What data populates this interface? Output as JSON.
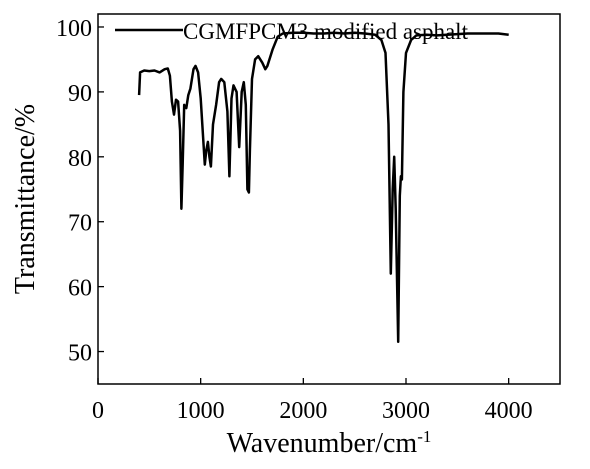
{
  "chart_data": {
    "type": "line",
    "xlabel": "Wavenumber/cm",
    "xlabel_superscript": "-1",
    "ylabel": "Transmittance/%",
    "xlim": [
      0,
      4500
    ],
    "ylim": [
      45,
      102
    ],
    "xticks": [
      0,
      1000,
      2000,
      3000,
      4000
    ],
    "yticks": [
      50,
      60,
      70,
      80,
      90,
      100
    ],
    "legend_position": "top-right",
    "grid": false,
    "series": [
      {
        "name": "CGMFPCM3 modified asphalt",
        "color": "#000000",
        "points": [
          [
            400,
            89.5
          ],
          [
            410,
            93.0
          ],
          [
            450,
            93.3
          ],
          [
            500,
            93.2
          ],
          [
            550,
            93.3
          ],
          [
            600,
            93.0
          ],
          [
            650,
            93.5
          ],
          [
            680,
            93.6
          ],
          [
            700,
            92.5
          ],
          [
            720,
            88.5
          ],
          [
            740,
            86.5
          ],
          [
            760,
            88.8
          ],
          [
            780,
            88.5
          ],
          [
            800,
            84.0
          ],
          [
            812,
            72.0
          ],
          [
            825,
            79.0
          ],
          [
            840,
            88.0
          ],
          [
            860,
            87.5
          ],
          [
            880,
            89.5
          ],
          [
            900,
            90.5
          ],
          [
            930,
            93.5
          ],
          [
            950,
            94.0
          ],
          [
            975,
            93.0
          ],
          [
            1000,
            89.0
          ],
          [
            1020,
            84.0
          ],
          [
            1040,
            78.8
          ],
          [
            1055,
            81.0
          ],
          [
            1070,
            82.3
          ],
          [
            1085,
            80.0
          ],
          [
            1100,
            78.5
          ],
          [
            1120,
            85.0
          ],
          [
            1150,
            88.0
          ],
          [
            1180,
            91.5
          ],
          [
            1200,
            92.0
          ],
          [
            1230,
            91.5
          ],
          [
            1260,
            87.0
          ],
          [
            1280,
            77.0
          ],
          [
            1300,
            89.0
          ],
          [
            1320,
            91.0
          ],
          [
            1350,
            90.0
          ],
          [
            1375,
            81.5
          ],
          [
            1400,
            90.0
          ],
          [
            1420,
            91.5
          ],
          [
            1440,
            88.0
          ],
          [
            1455,
            75.0
          ],
          [
            1470,
            74.5
          ],
          [
            1480,
            81.0
          ],
          [
            1500,
            92.0
          ],
          [
            1530,
            95.0
          ],
          [
            1560,
            95.5
          ],
          [
            1600,
            94.5
          ],
          [
            1630,
            93.5
          ],
          [
            1650,
            94.0
          ],
          [
            1700,
            96.5
          ],
          [
            1750,
            98.5
          ],
          [
            1800,
            99.0
          ],
          [
            1900,
            99.1
          ],
          [
            2000,
            99.1
          ],
          [
            2100,
            99.0
          ],
          [
            2200,
            99.0
          ],
          [
            2300,
            99.1
          ],
          [
            2400,
            99.0
          ],
          [
            2500,
            99.1
          ],
          [
            2600,
            99.0
          ],
          [
            2700,
            98.8
          ],
          [
            2760,
            98.0
          ],
          [
            2800,
            96.0
          ],
          [
            2830,
            85.0
          ],
          [
            2852,
            62.0
          ],
          [
            2870,
            75.0
          ],
          [
            2885,
            80.0
          ],
          [
            2900,
            72.0
          ],
          [
            2924,
            51.5
          ],
          [
            2940,
            74.0
          ],
          [
            2950,
            77.0
          ],
          [
            2960,
            76.5
          ],
          [
            2975,
            90.0
          ],
          [
            3000,
            96.0
          ],
          [
            3050,
            98.0
          ],
          [
            3100,
            98.7
          ],
          [
            3200,
            98.8
          ],
          [
            3300,
            98.7
          ],
          [
            3400,
            98.8
          ],
          [
            3500,
            98.9
          ],
          [
            3600,
            99.0
          ],
          [
            3700,
            99.0
          ],
          [
            3800,
            99.0
          ],
          [
            3900,
            99.0
          ],
          [
            4000,
            98.8
          ]
        ]
      }
    ]
  }
}
